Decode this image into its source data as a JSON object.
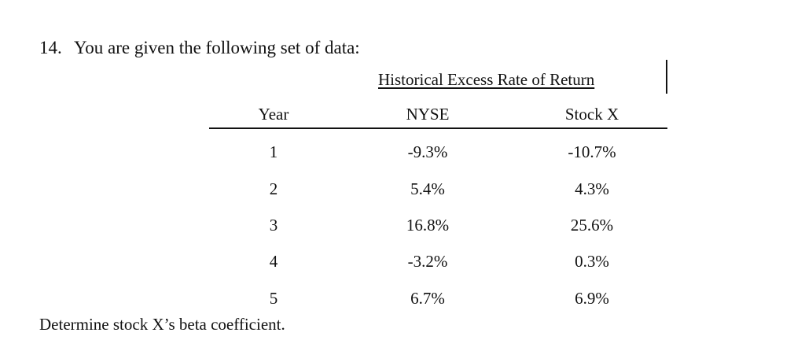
{
  "question": {
    "number": "14.",
    "prompt": "You are given the following set of data:"
  },
  "table": {
    "group_header": "Historical Excess Rate of Return",
    "columns": [
      "Year",
      "NYSE",
      "Stock X"
    ],
    "rows": [
      {
        "year": "1",
        "nyse": "-9.3%",
        "stock_x": "-10.7%"
      },
      {
        "year": "2",
        "nyse": "5.4%",
        "stock_x": "4.3%"
      },
      {
        "year": "3",
        "nyse": "16.8%",
        "stock_x": "25.6%"
      },
      {
        "year": "4",
        "nyse": "-3.2%",
        "stock_x": "0.3%"
      },
      {
        "year": "5",
        "nyse": "6.7%",
        "stock_x": "6.9%"
      }
    ]
  },
  "footer": {
    "instruction": "Determine stock X’s beta coefficient."
  }
}
